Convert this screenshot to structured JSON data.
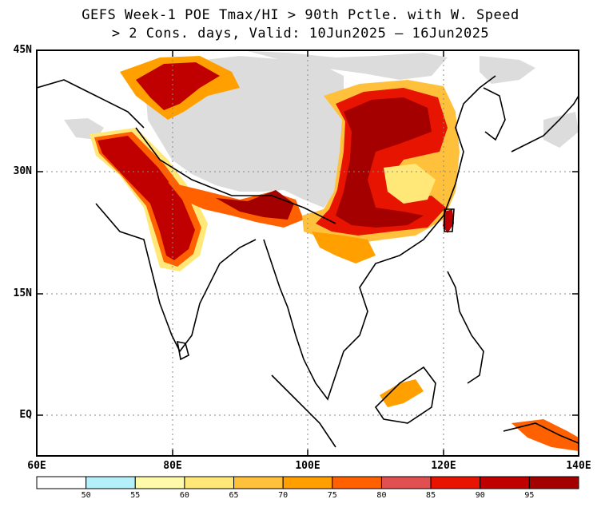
{
  "title": {
    "line1": "GEFS Week-1 POE Tmax/HI > 90th Pctle. with W. Speed",
    "line2": "> 2 Cons. days, Valid: 10Jun2025 – 16Jun2025"
  },
  "axes": {
    "lat_labels": [
      "45N",
      "30N",
      "15N",
      "EQ"
    ],
    "lon_labels": [
      "60E",
      "80E",
      "100E",
      "120E",
      "140E"
    ]
  },
  "colorbar": {
    "labels": [
      "50",
      "55",
      "60",
      "65",
      "70",
      "75",
      "80",
      "85",
      "90",
      "95"
    ],
    "colors": [
      "#ffffff",
      "#b4f0fa",
      "#fffaaa",
      "#ffe878",
      "#ffc03c",
      "#ffa000",
      "#ff6000",
      "#e15050",
      "#e61400",
      "#c00000",
      "#a50000"
    ]
  },
  "colors": {
    "masked": "#dcdcdc",
    "coast": "#000000"
  }
}
